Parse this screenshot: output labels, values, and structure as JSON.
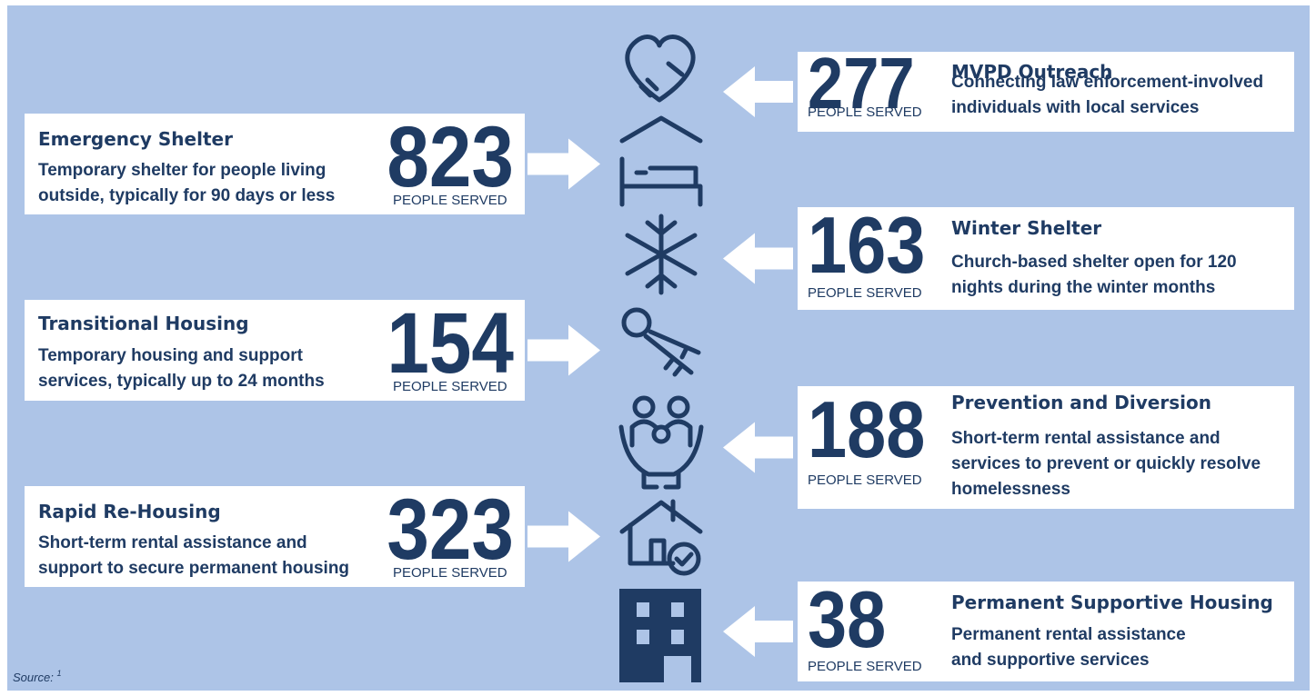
{
  "programs": [
    {
      "title": "MVPD Outreach",
      "description": [
        "Connecting law enforcement-involved",
        "individuals with local services"
      ],
      "number": "277",
      "unit": "PEOPLE SERVED"
    },
    {
      "title": "Emergency Shelter",
      "description": [
        "Temporary shelter for people living",
        "outside, typically for 90 days or less"
      ],
      "number": "823",
      "unit": "PEOPLE SERVED"
    },
    {
      "title": "Winter Shelter",
      "description": [
        "Church-based shelter open for 120",
        "nights during the winter months"
      ],
      "number": "163",
      "unit": "PEOPLE SERVED"
    },
    {
      "title": "Transitional Housing",
      "description": [
        "Temporary housing and support",
        "services, typically up to 24 months"
      ],
      "number": "154",
      "unit": "PEOPLE SERVED"
    },
    {
      "title": "Prevention and Diversion",
      "description": [
        "Short-term rental assistance and",
        "services to prevent or quickly resolve",
        "homelessness"
      ],
      "number": "188",
      "unit": "PEOPLE SERVED"
    },
    {
      "title": "Rapid Re-Housing",
      "description": [
        "Short-term rental assistance and",
        "support to secure permanent housing"
      ],
      "number": "323",
      "unit": "PEOPLE SERVED"
    },
    {
      "title": "Permanent Supportive Housing",
      "description": [
        "Permanent rental assistance",
        "and supportive services"
      ],
      "number": "38",
      "unit": "PEOPLE SERVED"
    }
  ],
  "source": {
    "label": "Source:",
    "note": "1"
  }
}
